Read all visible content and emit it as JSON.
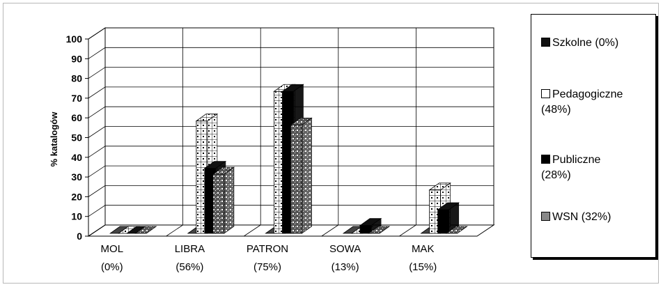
{
  "chart_data": {
    "type": "bar",
    "title": "",
    "xlabel": "",
    "ylabel": "% katalogów",
    "ylim": [
      0,
      100
    ],
    "yticks": [
      "0",
      "10",
      "20",
      "30",
      "40",
      "50",
      "60",
      "70",
      "80",
      "90",
      "100"
    ],
    "categories": [
      {
        "name": "MOL",
        "pct": "(0%)"
      },
      {
        "name": "LIBRA",
        "pct": "(56%)"
      },
      {
        "name": "PATRON",
        "pct": "(75%)"
      },
      {
        "name": "SOWA",
        "pct": "(13%)"
      },
      {
        "name": "MAK",
        "pct": "(15%)"
      }
    ],
    "series": [
      {
        "name": "Szkolne (0%)",
        "values": [
          0,
          0,
          0,
          0,
          0
        ],
        "pattern": "dark-dots"
      },
      {
        "name": "Pedagogiczne (48%)",
        "values": [
          0,
          57,
          72,
          0,
          22
        ],
        "pattern": "white-grid"
      },
      {
        "name": "Publiczne (28%)",
        "values": [
          0,
          33,
          72,
          4,
          12
        ],
        "pattern": "black"
      },
      {
        "name": "WSN (32%)",
        "values": [
          0,
          30,
          55,
          0,
          0
        ],
        "pattern": "speckled"
      }
    ],
    "legend": "right",
    "grid": true,
    "three_d": true
  },
  "legend_items": [
    {
      "line1": "Szkolne (0%)",
      "line2": ""
    },
    {
      "line1": "Pedagogiczne",
      "line2": "(48%)"
    },
    {
      "line1": "Publiczne",
      "line2": "(28%)"
    },
    {
      "line1": "WSN  (32%)",
      "line2": ""
    }
  ]
}
